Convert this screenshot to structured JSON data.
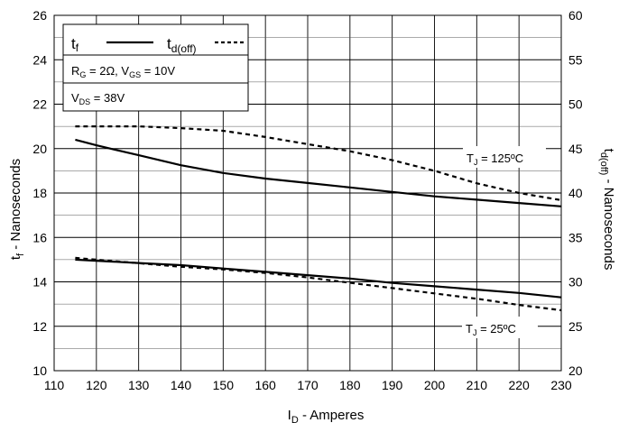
{
  "chart_data": {
    "type": "line",
    "title": "",
    "xlabel": {
      "main": "I",
      "sub": "D",
      "rest": " - Amperes"
    },
    "ylabel_left": {
      "main": "t",
      "sub": "f",
      "rest": " - Nanoseconds"
    },
    "ylabel_right": {
      "main": "t",
      "sub": "d(off)",
      "rest": " - Nanoseconds"
    },
    "xlim": [
      110,
      230
    ],
    "ylim_left": [
      10,
      26
    ],
    "ylim_right": [
      20,
      60
    ],
    "x_ticks": [
      "110",
      "120",
      "130",
      "140",
      "150",
      "160",
      "170",
      "180",
      "190",
      "200",
      "210",
      "220",
      "230"
    ],
    "y_left_ticks": [
      "10",
      "12",
      "14",
      "16",
      "18",
      "20",
      "22",
      "24",
      "26"
    ],
    "y_right_ticks": [
      "20",
      "25",
      "30",
      "35",
      "40",
      "45",
      "50",
      "55",
      "60"
    ],
    "grid": true,
    "legend": {
      "tf": {
        "main": "t",
        "sub": "f"
      },
      "tdoff": {
        "main": "t",
        "sub": "d(off)"
      },
      "rg": {
        "r": "R",
        "rsub": "G",
        "rval": " = 2Ω, V",
        "vsub": "GS",
        "vval": " = 10V"
      },
      "vds": {
        "v": "V",
        "vsub": "DS",
        "vval": " = 38V"
      }
    },
    "annotations": {
      "tj125": {
        "t": "T",
        "sub": "J",
        "rest": " = 125ºC"
      },
      "tj25": {
        "t": "T",
        "sub": "J",
        "rest": " = 25ºC"
      }
    },
    "series": [
      {
        "id": "tf_125",
        "axis": "left",
        "style": "solid",
        "x": [
          115,
          120,
          130,
          140,
          150,
          160,
          170,
          180,
          190,
          200,
          210,
          220,
          230
        ],
        "y": [
          20.4,
          20.15,
          19.7,
          19.25,
          18.9,
          18.65,
          18.45,
          18.25,
          18.05,
          17.85,
          17.7,
          17.55,
          17.4
        ]
      },
      {
        "id": "tdoff_125",
        "axis": "right",
        "style": "dashed",
        "x": [
          115,
          120,
          130,
          140,
          150,
          160,
          170,
          180,
          190,
          200,
          210,
          220,
          230
        ],
        "y": [
          47.5,
          47.5,
          47.5,
          47.3,
          47.0,
          46.3,
          45.5,
          44.7,
          43.7,
          42.5,
          41.1,
          40.0,
          39.2
        ]
      },
      {
        "id": "tf_25",
        "axis": "left",
        "style": "solid",
        "x": [
          115,
          120,
          130,
          140,
          150,
          160,
          170,
          180,
          190,
          200,
          210,
          220,
          230
        ],
        "y": [
          15.0,
          14.95,
          14.85,
          14.75,
          14.6,
          14.45,
          14.3,
          14.15,
          13.95,
          13.8,
          13.65,
          13.5,
          13.3
        ]
      },
      {
        "id": "tdoff_25",
        "axis": "right",
        "style": "dashed",
        "x": [
          115,
          120,
          130,
          140,
          150,
          160,
          170,
          180,
          190,
          200,
          210,
          220,
          230
        ],
        "y": [
          32.7,
          32.5,
          32.1,
          31.7,
          31.4,
          31.0,
          30.5,
          29.9,
          29.3,
          28.7,
          28.1,
          27.4,
          26.8
        ]
      }
    ]
  }
}
